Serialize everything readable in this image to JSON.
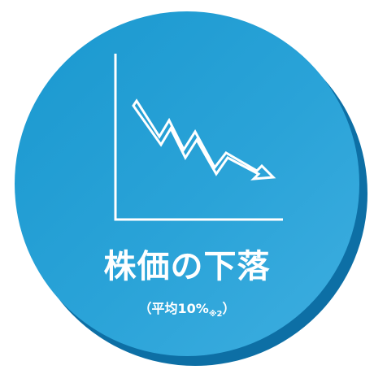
{
  "colors": {
    "circle": "#2aa3d8",
    "circle_shadow": "#0d6fa5",
    "foreground": "#ffffff"
  },
  "icon": "stock-decline-chart-icon",
  "title": "株価の下落",
  "subtitle": {
    "open_paren": "（",
    "text": "平均10%",
    "note": "※2",
    "close_paren": "）"
  }
}
